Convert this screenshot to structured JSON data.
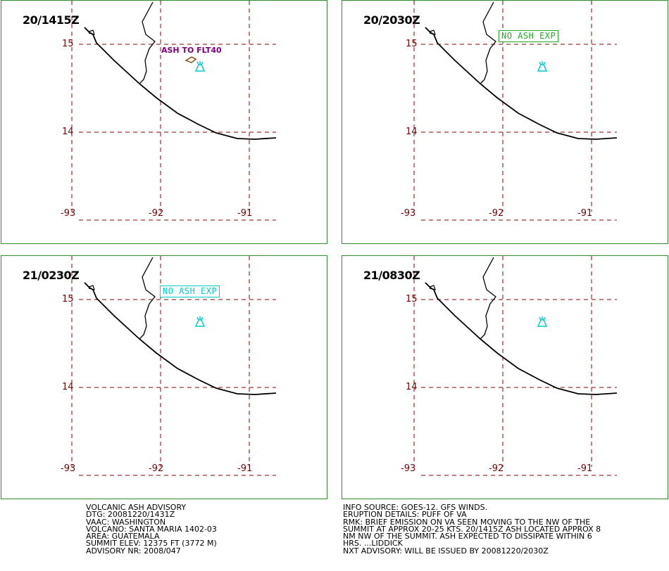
{
  "panels": [
    {
      "time": "20/1415Z",
      "note": "ASH TO FLT40",
      "note_color": "#800080",
      "has_box": false
    },
    {
      "time": "20/2030Z",
      "note": "NO ASH EXP",
      "note_color": "#22aa22",
      "has_box": true
    },
    {
      "time": "21/0230Z",
      "note": "NO ASH EXP",
      "note_color": "#00cccc",
      "has_box": true
    },
    {
      "time": "21/0830Z",
      "note": "",
      "note_color": "",
      "has_box": false
    }
  ],
  "grid": {
    "lat_labels": [
      "15",
      "14"
    ],
    "lon_labels": [
      "-93",
      "-92",
      "-91"
    ]
  },
  "colors": {
    "grid": "#8b0000",
    "frame": "#2e8b2e",
    "volcano": "#00cccc",
    "ash_outline": "#8b3a00",
    "coastline": "#000000"
  },
  "icons": {
    "volcano": "volcano-icon"
  },
  "advisory_left": [
    "VOLCANIC ASH ADVISORY",
    "DTG: 20081220/1431Z",
    "VAAC: WASHINGTON",
    "VOLCANO: SANTA MARIA 1402-03",
    "AREA: GUATEMALA",
    "SUMMIT ELEV: 12375 FT (3772 M)",
    "ADVISORY NR: 2008/047"
  ],
  "advisory_right": [
    "INFO SOURCE: GOES-12. GFS WINDS.",
    "ERUPTION DETAILS: PUFF OF VA",
    "RMK: BRIEF EMISSION ON VA SEEN MOVING TO THE NW OF THE",
    "SUMMIT AT APPROX 20-25 KTS. 20/1415Z ASH LOCATED APPROX 8",
    "NM NW OF THE SUMMIT. ASH EXPECTED TO DISSIPATE WITHIN 6",
    "HRS. ...LIDDICK",
    "NXT ADVISORY: WILL BE ISSUED BY 20081220/2030Z"
  ]
}
